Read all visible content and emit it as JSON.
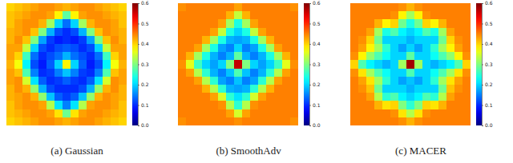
{
  "chart_data": [
    {
      "type": "heatmap",
      "title": "(a) Gaussian",
      "color_range": [
        0,
        0.6
      ],
      "color_ticks": [
        {
          "value": 0,
          "label": "0.0"
        },
        0.1,
        0.2,
        0.3,
        0.4,
        0.5,
        0.6
      ],
      "cells": [
        [
          0.4,
          0.41,
          0.42,
          0.43,
          0.44,
          0.44,
          0.43,
          0.42,
          0.43,
          0.44,
          0.44,
          0.43,
          0.42,
          0.41,
          0.4
        ],
        [
          0.41,
          0.42,
          0.43,
          0.44,
          0.44,
          0.43,
          0.38,
          0.28,
          0.38,
          0.43,
          0.44,
          0.44,
          0.43,
          0.42,
          0.41
        ],
        [
          0.41,
          0.43,
          0.44,
          0.44,
          0.42,
          0.32,
          0.2,
          0.14,
          0.2,
          0.32,
          0.42,
          0.44,
          0.44,
          0.43,
          0.41
        ],
        [
          0.42,
          0.43,
          0.44,
          0.41,
          0.3,
          0.18,
          0.12,
          0.1,
          0.12,
          0.18,
          0.3,
          0.41,
          0.44,
          0.43,
          0.42
        ],
        [
          0.42,
          0.44,
          0.41,
          0.3,
          0.17,
          0.11,
          0.09,
          0.1,
          0.09,
          0.11,
          0.17,
          0.3,
          0.41,
          0.44,
          0.42
        ],
        [
          0.43,
          0.43,
          0.34,
          0.2,
          0.12,
          0.1,
          0.12,
          0.13,
          0.12,
          0.1,
          0.12,
          0.2,
          0.34,
          0.43,
          0.43
        ],
        [
          0.43,
          0.4,
          0.26,
          0.14,
          0.1,
          0.12,
          0.14,
          0.18,
          0.14,
          0.12,
          0.1,
          0.14,
          0.26,
          0.4,
          0.43
        ],
        [
          0.42,
          0.37,
          0.22,
          0.12,
          0.09,
          0.13,
          0.2,
          0.38,
          0.2,
          0.13,
          0.09,
          0.12,
          0.22,
          0.37,
          0.42
        ],
        [
          0.43,
          0.41,
          0.27,
          0.15,
          0.1,
          0.11,
          0.15,
          0.19,
          0.15,
          0.11,
          0.1,
          0.15,
          0.27,
          0.41,
          0.43
        ],
        [
          0.43,
          0.44,
          0.35,
          0.21,
          0.13,
          0.1,
          0.11,
          0.13,
          0.11,
          0.1,
          0.13,
          0.21,
          0.35,
          0.44,
          0.43
        ],
        [
          0.42,
          0.44,
          0.42,
          0.31,
          0.18,
          0.12,
          0.1,
          0.1,
          0.1,
          0.12,
          0.18,
          0.31,
          0.42,
          0.44,
          0.42
        ],
        [
          0.42,
          0.43,
          0.44,
          0.42,
          0.31,
          0.19,
          0.13,
          0.11,
          0.13,
          0.19,
          0.31,
          0.42,
          0.44,
          0.43,
          0.42
        ],
        [
          0.41,
          0.43,
          0.44,
          0.44,
          0.43,
          0.33,
          0.21,
          0.15,
          0.21,
          0.33,
          0.43,
          0.44,
          0.44,
          0.43,
          0.41
        ],
        [
          0.41,
          0.42,
          0.43,
          0.44,
          0.44,
          0.43,
          0.39,
          0.29,
          0.39,
          0.43,
          0.44,
          0.44,
          0.43,
          0.42,
          0.41
        ],
        [
          0.4,
          0.41,
          0.42,
          0.43,
          0.44,
          0.44,
          0.43,
          0.42,
          0.43,
          0.44,
          0.44,
          0.43,
          0.42,
          0.41,
          0.4
        ]
      ]
    },
    {
      "type": "heatmap",
      "title": "(b) SmoothAdv",
      "color_range": [
        0,
        0.6
      ],
      "color_ticks": [
        {
          "value": 0,
          "label": "0.0"
        },
        0.1,
        0.2,
        0.3,
        0.4,
        0.5,
        0.6
      ],
      "cells": [
        [
          0.44,
          0.45,
          0.45,
          0.45,
          0.45,
          0.45,
          0.45,
          0.43,
          0.45,
          0.45,
          0.45,
          0.45,
          0.45,
          0.45,
          0.44
        ],
        [
          0.45,
          0.45,
          0.45,
          0.45,
          0.45,
          0.45,
          0.42,
          0.34,
          0.42,
          0.45,
          0.45,
          0.45,
          0.45,
          0.45,
          0.45
        ],
        [
          0.45,
          0.45,
          0.45,
          0.45,
          0.45,
          0.43,
          0.32,
          0.24,
          0.32,
          0.43,
          0.45,
          0.45,
          0.45,
          0.45,
          0.45
        ],
        [
          0.45,
          0.45,
          0.45,
          0.45,
          0.43,
          0.34,
          0.24,
          0.2,
          0.24,
          0.34,
          0.43,
          0.45,
          0.45,
          0.45,
          0.45
        ],
        [
          0.45,
          0.45,
          0.45,
          0.42,
          0.32,
          0.24,
          0.18,
          0.17,
          0.18,
          0.24,
          0.32,
          0.42,
          0.45,
          0.45,
          0.45
        ],
        [
          0.45,
          0.45,
          0.43,
          0.32,
          0.24,
          0.17,
          0.15,
          0.2,
          0.15,
          0.17,
          0.24,
          0.32,
          0.43,
          0.45,
          0.45
        ],
        [
          0.45,
          0.42,
          0.32,
          0.24,
          0.18,
          0.15,
          0.18,
          0.28,
          0.18,
          0.15,
          0.18,
          0.24,
          0.32,
          0.42,
          0.45
        ],
        [
          0.44,
          0.36,
          0.26,
          0.2,
          0.17,
          0.2,
          0.3,
          0.56,
          0.3,
          0.2,
          0.17,
          0.2,
          0.26,
          0.36,
          0.44
        ],
        [
          0.45,
          0.43,
          0.33,
          0.25,
          0.18,
          0.15,
          0.19,
          0.27,
          0.19,
          0.15,
          0.18,
          0.25,
          0.33,
          0.43,
          0.45
        ],
        [
          0.45,
          0.45,
          0.43,
          0.33,
          0.25,
          0.17,
          0.15,
          0.19,
          0.15,
          0.17,
          0.25,
          0.33,
          0.43,
          0.45,
          0.45
        ],
        [
          0.45,
          0.45,
          0.45,
          0.42,
          0.33,
          0.25,
          0.18,
          0.17,
          0.18,
          0.25,
          0.33,
          0.42,
          0.45,
          0.45,
          0.45
        ],
        [
          0.45,
          0.45,
          0.45,
          0.45,
          0.43,
          0.35,
          0.25,
          0.21,
          0.25,
          0.35,
          0.43,
          0.45,
          0.45,
          0.45,
          0.45
        ],
        [
          0.45,
          0.45,
          0.45,
          0.45,
          0.45,
          0.44,
          0.33,
          0.25,
          0.33,
          0.44,
          0.45,
          0.45,
          0.45,
          0.45,
          0.45
        ],
        [
          0.45,
          0.45,
          0.45,
          0.45,
          0.45,
          0.45,
          0.43,
          0.35,
          0.43,
          0.45,
          0.45,
          0.45,
          0.45,
          0.45,
          0.45
        ],
        [
          0.44,
          0.45,
          0.45,
          0.45,
          0.45,
          0.45,
          0.45,
          0.44,
          0.45,
          0.45,
          0.45,
          0.45,
          0.45,
          0.45,
          0.44
        ]
      ]
    },
    {
      "type": "heatmap",
      "title": "(c) MACER",
      "color_range": [
        0,
        0.6
      ],
      "color_ticks": [
        {
          "value": 0,
          "label": "0.0"
        },
        0.1,
        0.2,
        0.3,
        0.4,
        0.5,
        0.6
      ],
      "cells": [
        [
          0.45,
          0.45,
          0.45,
          0.45,
          0.45,
          0.45,
          0.44,
          0.42,
          0.44,
          0.45,
          0.45,
          0.45,
          0.45,
          0.45,
          0.45
        ],
        [
          0.45,
          0.45,
          0.45,
          0.45,
          0.45,
          0.44,
          0.38,
          0.32,
          0.38,
          0.44,
          0.45,
          0.45,
          0.45,
          0.45,
          0.45
        ],
        [
          0.45,
          0.45,
          0.45,
          0.42,
          0.38,
          0.4,
          0.29,
          0.24,
          0.29,
          0.4,
          0.38,
          0.42,
          0.45,
          0.45,
          0.45
        ],
        [
          0.45,
          0.45,
          0.43,
          0.32,
          0.24,
          0.27,
          0.22,
          0.2,
          0.22,
          0.27,
          0.24,
          0.32,
          0.43,
          0.45,
          0.45
        ],
        [
          0.45,
          0.44,
          0.4,
          0.29,
          0.2,
          0.2,
          0.2,
          0.18,
          0.2,
          0.2,
          0.2,
          0.29,
          0.4,
          0.44,
          0.45
        ],
        [
          0.45,
          0.43,
          0.38,
          0.32,
          0.25,
          0.2,
          0.17,
          0.2,
          0.17,
          0.2,
          0.25,
          0.32,
          0.38,
          0.43,
          0.45
        ],
        [
          0.44,
          0.38,
          0.31,
          0.27,
          0.23,
          0.2,
          0.2,
          0.28,
          0.2,
          0.2,
          0.23,
          0.27,
          0.31,
          0.38,
          0.44
        ],
        [
          0.4,
          0.27,
          0.22,
          0.2,
          0.18,
          0.2,
          0.32,
          0.58,
          0.32,
          0.2,
          0.18,
          0.2,
          0.22,
          0.27,
          0.4
        ],
        [
          0.44,
          0.39,
          0.32,
          0.27,
          0.23,
          0.2,
          0.2,
          0.27,
          0.2,
          0.2,
          0.23,
          0.27,
          0.32,
          0.39,
          0.44
        ],
        [
          0.45,
          0.43,
          0.39,
          0.32,
          0.25,
          0.2,
          0.17,
          0.19,
          0.17,
          0.2,
          0.25,
          0.32,
          0.39,
          0.43,
          0.45
        ],
        [
          0.45,
          0.44,
          0.41,
          0.29,
          0.2,
          0.2,
          0.2,
          0.18,
          0.2,
          0.2,
          0.2,
          0.29,
          0.41,
          0.44,
          0.45
        ],
        [
          0.45,
          0.45,
          0.43,
          0.33,
          0.25,
          0.27,
          0.22,
          0.2,
          0.22,
          0.27,
          0.25,
          0.33,
          0.43,
          0.45,
          0.45
        ],
        [
          0.45,
          0.45,
          0.45,
          0.42,
          0.39,
          0.4,
          0.3,
          0.25,
          0.3,
          0.4,
          0.39,
          0.42,
          0.45,
          0.45,
          0.45
        ],
        [
          0.45,
          0.45,
          0.45,
          0.45,
          0.45,
          0.44,
          0.39,
          0.33,
          0.39,
          0.44,
          0.45,
          0.45,
          0.45,
          0.45,
          0.45
        ],
        [
          0.45,
          0.45,
          0.45,
          0.45,
          0.45,
          0.45,
          0.44,
          0.42,
          0.44,
          0.45,
          0.45,
          0.45,
          0.45,
          0.45,
          0.45
        ]
      ]
    }
  ]
}
